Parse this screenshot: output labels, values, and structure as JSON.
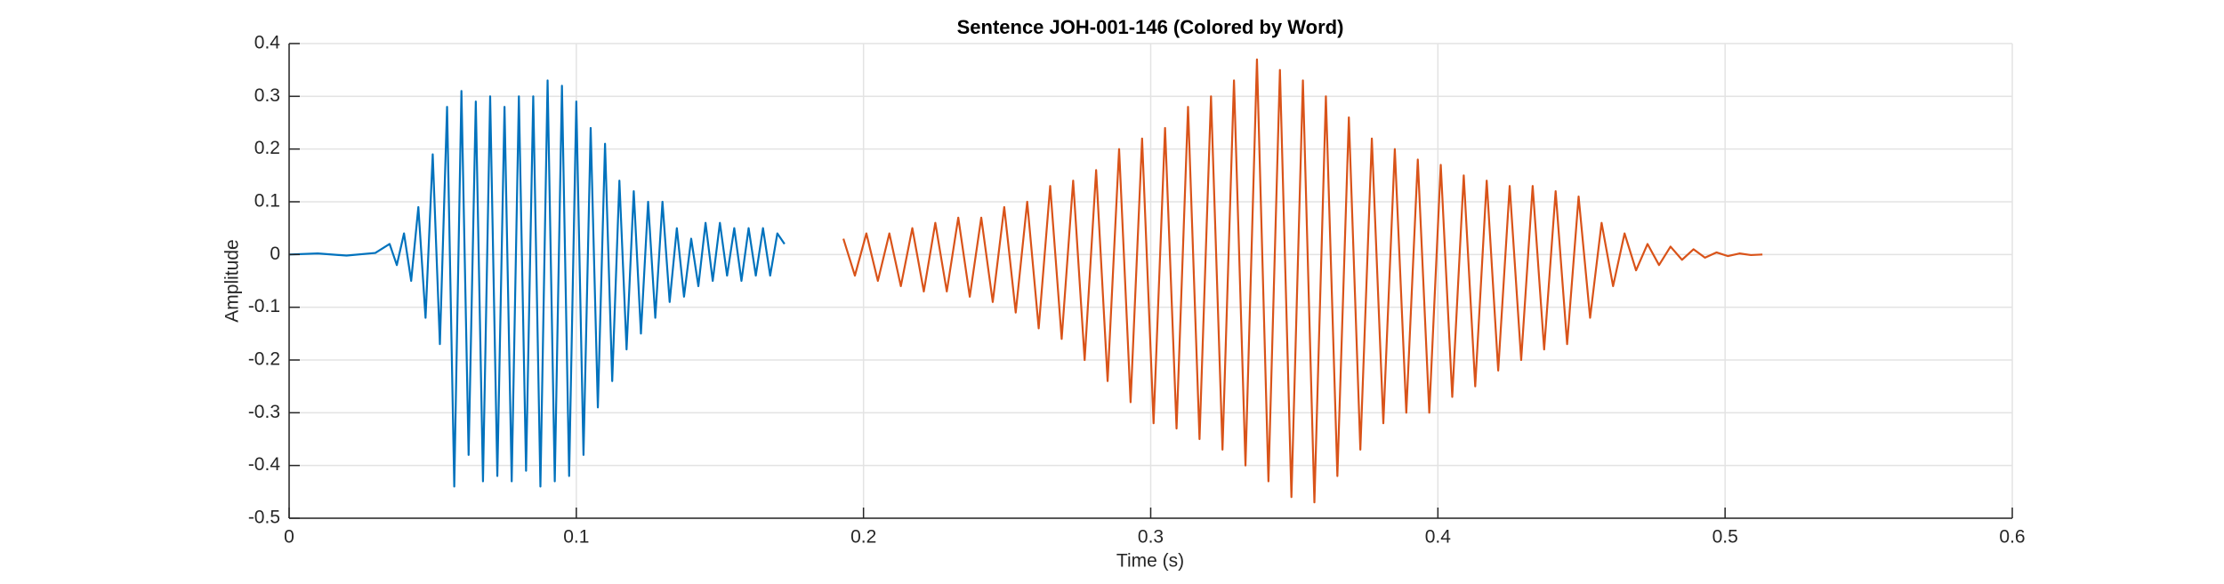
{
  "chart_data": {
    "type": "line",
    "title": "Sentence JOH-001-146 (Colored by Word)",
    "xlabel": "Time (s)",
    "ylabel": "Amplitude",
    "xlim": [
      0,
      0.6
    ],
    "xticks": [
      0,
      0.1,
      0.2,
      0.3,
      0.4,
      0.5,
      0.6
    ],
    "ylim": [
      -0.5,
      0.4
    ],
    "yticks": [
      -0.5,
      -0.4,
      -0.3,
      -0.2,
      -0.1,
      0,
      0.1,
      0.2,
      0.3,
      0.4
    ],
    "grid": true,
    "series": [
      {
        "color": "#0072bd",
        "x": [
          0,
          0.01,
          0.02,
          0.03,
          0.035,
          0.0375,
          0.04,
          0.0425,
          0.045,
          0.0475,
          0.05,
          0.0525,
          0.055,
          0.0575,
          0.06,
          0.0625,
          0.065,
          0.0675,
          0.07,
          0.0725,
          0.075,
          0.0775,
          0.08,
          0.0825,
          0.085,
          0.0875,
          0.09,
          0.0925,
          0.095,
          0.0975,
          0.1,
          0.1025,
          0.105,
          0.1075,
          0.11,
          0.1125,
          0.115,
          0.1175,
          0.12,
          0.1225,
          0.125,
          0.1275,
          0.13,
          0.1325,
          0.135,
          0.1375,
          0.14,
          0.1425,
          0.145,
          0.1475,
          0.15,
          0.1525,
          0.155,
          0.1575,
          0.16,
          0.1625,
          0.165,
          0.1675,
          0.17,
          0.1725
        ],
        "values": [
          0,
          0.002,
          -0.002,
          0.003,
          0.02,
          -0.02,
          0.04,
          -0.05,
          0.09,
          -0.12,
          0.19,
          -0.17,
          0.28,
          -0.44,
          0.31,
          -0.38,
          0.29,
          -0.43,
          0.3,
          -0.42,
          0.28,
          -0.43,
          0.3,
          -0.41,
          0.3,
          -0.44,
          0.33,
          -0.43,
          0.32,
          -0.42,
          0.29,
          -0.38,
          0.24,
          -0.29,
          0.21,
          -0.24,
          0.14,
          -0.18,
          0.12,
          -0.15,
          0.1,
          -0.12,
          0.1,
          -0.09,
          0.05,
          -0.08,
          0.03,
          -0.06,
          0.06,
          -0.05,
          0.06,
          -0.04,
          0.05,
          -0.05,
          0.05,
          -0.04,
          0.05,
          -0.04,
          0.04,
          0.02
        ]
      },
      {
        "color": "#d95319",
        "x": [
          0.193,
          0.197,
          0.201,
          0.205,
          0.209,
          0.213,
          0.217,
          0.221,
          0.225,
          0.229,
          0.233,
          0.237,
          0.241,
          0.245,
          0.249,
          0.253,
          0.257,
          0.261,
          0.265,
          0.269,
          0.273,
          0.277,
          0.281,
          0.285,
          0.289,
          0.293,
          0.297,
          0.301,
          0.305,
          0.309,
          0.313,
          0.317,
          0.321,
          0.325,
          0.329,
          0.333,
          0.337,
          0.341,
          0.345,
          0.349,
          0.353,
          0.357,
          0.361,
          0.365,
          0.369,
          0.373,
          0.377,
          0.381,
          0.385,
          0.389,
          0.393,
          0.397,
          0.401,
          0.405,
          0.409,
          0.413,
          0.417,
          0.421,
          0.425,
          0.429,
          0.433,
          0.437,
          0.441,
          0.445,
          0.449,
          0.453,
          0.457,
          0.461,
          0.465,
          0.469,
          0.473,
          0.477,
          0.481,
          0.485,
          0.489,
          0.493,
          0.497,
          0.501,
          0.505,
          0.509,
          0.513
        ],
        "values": [
          0.03,
          -0.04,
          0.04,
          -0.05,
          0.04,
          -0.06,
          0.05,
          -0.07,
          0.06,
          -0.07,
          0.07,
          -0.08,
          0.07,
          -0.09,
          0.09,
          -0.11,
          0.1,
          -0.14,
          0.13,
          -0.16,
          0.14,
          -0.2,
          0.16,
          -0.24,
          0.2,
          -0.28,
          0.22,
          -0.32,
          0.24,
          -0.33,
          0.28,
          -0.35,
          0.3,
          -0.37,
          0.33,
          -0.4,
          0.37,
          -0.43,
          0.35,
          -0.46,
          0.33,
          -0.47,
          0.3,
          -0.42,
          0.26,
          -0.37,
          0.22,
          -0.32,
          0.2,
          -0.3,
          0.18,
          -0.3,
          0.17,
          -0.27,
          0.15,
          -0.25,
          0.14,
          -0.22,
          0.13,
          -0.2,
          0.13,
          -0.18,
          0.12,
          -0.17,
          0.11,
          -0.12,
          0.06,
          -0.06,
          0.04,
          -0.03,
          0.02,
          -0.02,
          0.015,
          -0.01,
          0.01,
          -0.006,
          0.004,
          -0.003,
          0.002,
          -0.001,
          0
        ]
      }
    ]
  }
}
